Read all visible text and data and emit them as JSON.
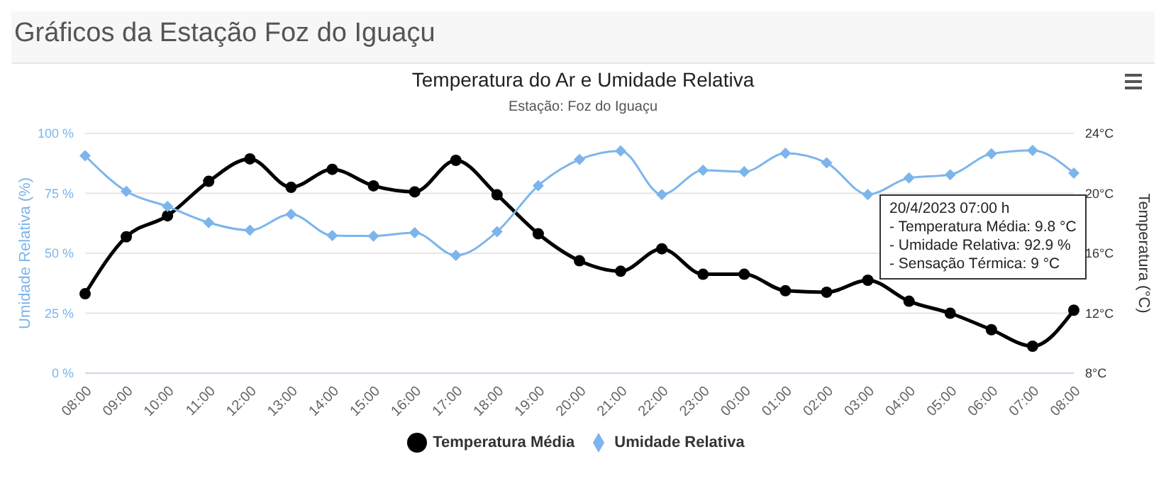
{
  "chart_data": {
    "type": "line",
    "title": "Temperatura do Ar e Umidade Relativa",
    "subtitle": "Estação: Foz do Iguaçu",
    "ylabel": "Umidade Relativa (%)",
    "y2label": "Temperatura (°C)",
    "categories": [
      "08:00",
      "09:00",
      "10:00",
      "11:00",
      "12:00",
      "13:00",
      "14:00",
      "15:00",
      "16:00",
      "17:00",
      "18:00",
      "19:00",
      "20:00",
      "21:00",
      "22:00",
      "23:00",
      "00:00",
      "01:00",
      "02:00",
      "03:00",
      "04:00",
      "05:00",
      "06:00",
      "07:00",
      "08:00"
    ],
    "series": [
      {
        "name": "Temperatura Média",
        "color": "#000000",
        "axis": "y2",
        "marker": "circle",
        "values": [
          13.3,
          17.1,
          18.5,
          20.8,
          22.3,
          20.4,
          21.6,
          20.5,
          20.1,
          22.2,
          19.9,
          17.3,
          15.5,
          14.8,
          16.3,
          14.6,
          14.6,
          13.5,
          13.4,
          14.2,
          12.8,
          12.0,
          10.9,
          9.8,
          12.2
        ]
      },
      {
        "name": "Umidade Relativa",
        "color": "#7cb5ec",
        "axis": "y",
        "marker": "diamond",
        "values": [
          90.7,
          75.8,
          69.5,
          62.8,
          59.6,
          66.3,
          57.4,
          57.2,
          58.6,
          49.1,
          59.0,
          78.2,
          89.1,
          92.7,
          74.5,
          84.6,
          84.0,
          91.7,
          87.7,
          74.5,
          81.4,
          82.8,
          91.5,
          92.9,
          83.4
        ]
      }
    ],
    "ylim": [
      0,
      100
    ],
    "yticks": [
      {
        "value": 0,
        "label": "0 %"
      },
      {
        "value": 25,
        "label": "25 %"
      },
      {
        "value": 50,
        "label": "50 %"
      },
      {
        "value": 75,
        "label": "75 %"
      },
      {
        "value": 100,
        "label": "100 %"
      }
    ],
    "y2lim": [
      8,
      24
    ],
    "y2ticks": [
      {
        "value": 8,
        "label": "8°C"
      },
      {
        "value": 12,
        "label": "12°C"
      },
      {
        "value": 16,
        "label": "16°C"
      },
      {
        "value": 20,
        "label": "20°C"
      },
      {
        "value": 24,
        "label": "24°C"
      }
    ],
    "grid": "y",
    "legend": "bottom",
    "annotations": [
      "Gráficos da Estação Foz do Iguaçu",
      "20/4/2023 07:00 h\n- Temperatura Média: 9.8 °C\n- Umidade Relativa: 92.9 %\n- Sensação Térmica: 9 °C"
    ]
  }
}
